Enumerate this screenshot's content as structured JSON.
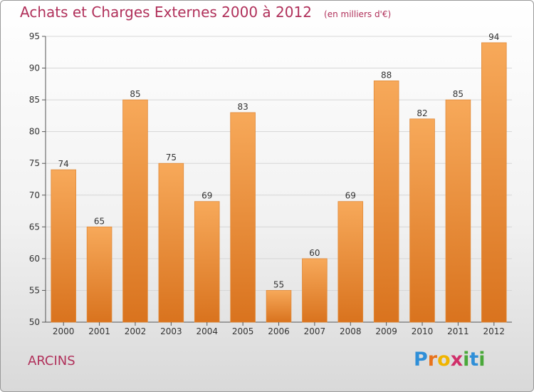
{
  "header": {
    "title": "Achats et Charges Externes 2000 à 2012",
    "unit": "(en milliers d'€)"
  },
  "footer": {
    "commune": "ARCINS",
    "logo_letters": [
      "P",
      "r",
      "o",
      "x",
      "i",
      "t",
      "i"
    ],
    "logo_colors": [
      "#2f8fd8",
      "#e8731c",
      "#f0b400",
      "#d02f6a",
      "#4aa83a",
      "#2f8fd8",
      "#4aa83a"
    ]
  },
  "colors": {
    "title": "#b0305a",
    "bar_light": "#f7a95a",
    "bar_dark": "#d9731e",
    "grid": "#d6d6d6",
    "axis": "#555555"
  },
  "chart_data": {
    "type": "bar",
    "categories": [
      "2000",
      "2001",
      "2002",
      "2003",
      "2004",
      "2005",
      "2006",
      "2007",
      "2008",
      "2009",
      "2010",
      "2011",
      "2012"
    ],
    "values": [
      74,
      65,
      85,
      75,
      69,
      83,
      55,
      60,
      69,
      88,
      82,
      85,
      94
    ],
    "ylim": [
      50,
      95
    ],
    "yticks": [
      50,
      55,
      60,
      65,
      70,
      75,
      80,
      85,
      90,
      95
    ],
    "grid": true
  }
}
